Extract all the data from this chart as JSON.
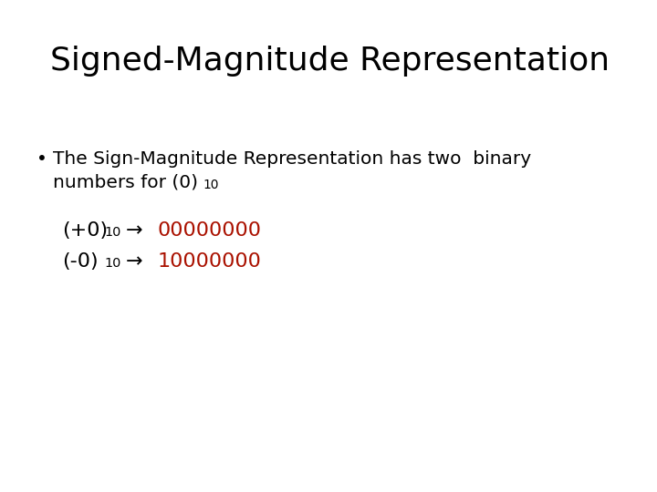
{
  "title": "Signed-Magnitude Representation",
  "title_fontsize": 26,
  "background_color": "#ffffff",
  "bullet_fontsize": 14.5,
  "code_fontsize": 16,
  "black_color": "#000000",
  "red_color": "#aa1100",
  "font_family": "DejaVu Sans"
}
